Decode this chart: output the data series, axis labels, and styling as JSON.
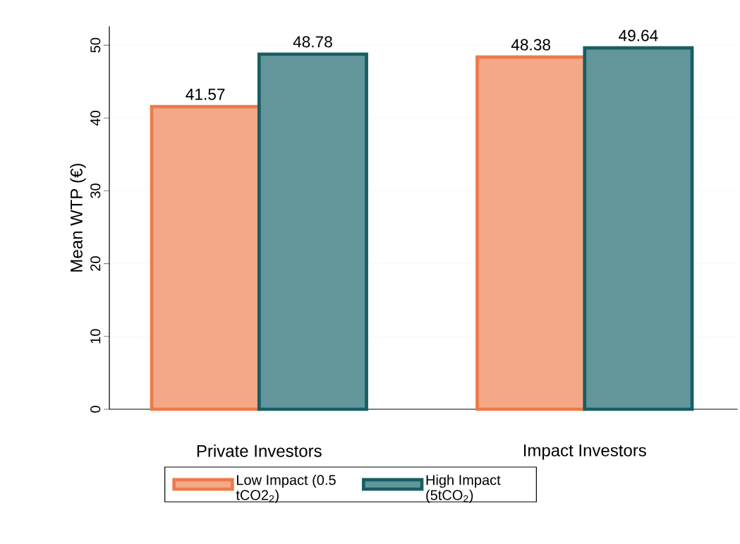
{
  "chart_data": {
    "type": "bar",
    "ylabel": "Mean WTP (€)",
    "categories": [
      "Private Investors",
      "Impact Investors"
    ],
    "series": [
      {
        "name": "Low Impact (0.5 tCO2$_{2}$)",
        "color": "#f4a887",
        "values": [
          41.57,
          48.38
        ]
      },
      {
        "name": "High Impact (5tCO$_{2}$)",
        "color": "#62969a",
        "values": [
          48.78,
          49.64
        ]
      }
    ],
    "ylim": [
      0,
      52.6
    ],
    "yticks": [
      0,
      10,
      20,
      30,
      40,
      50
    ],
    "grid": "y",
    "legend": "bottom",
    "data_labels": true
  }
}
